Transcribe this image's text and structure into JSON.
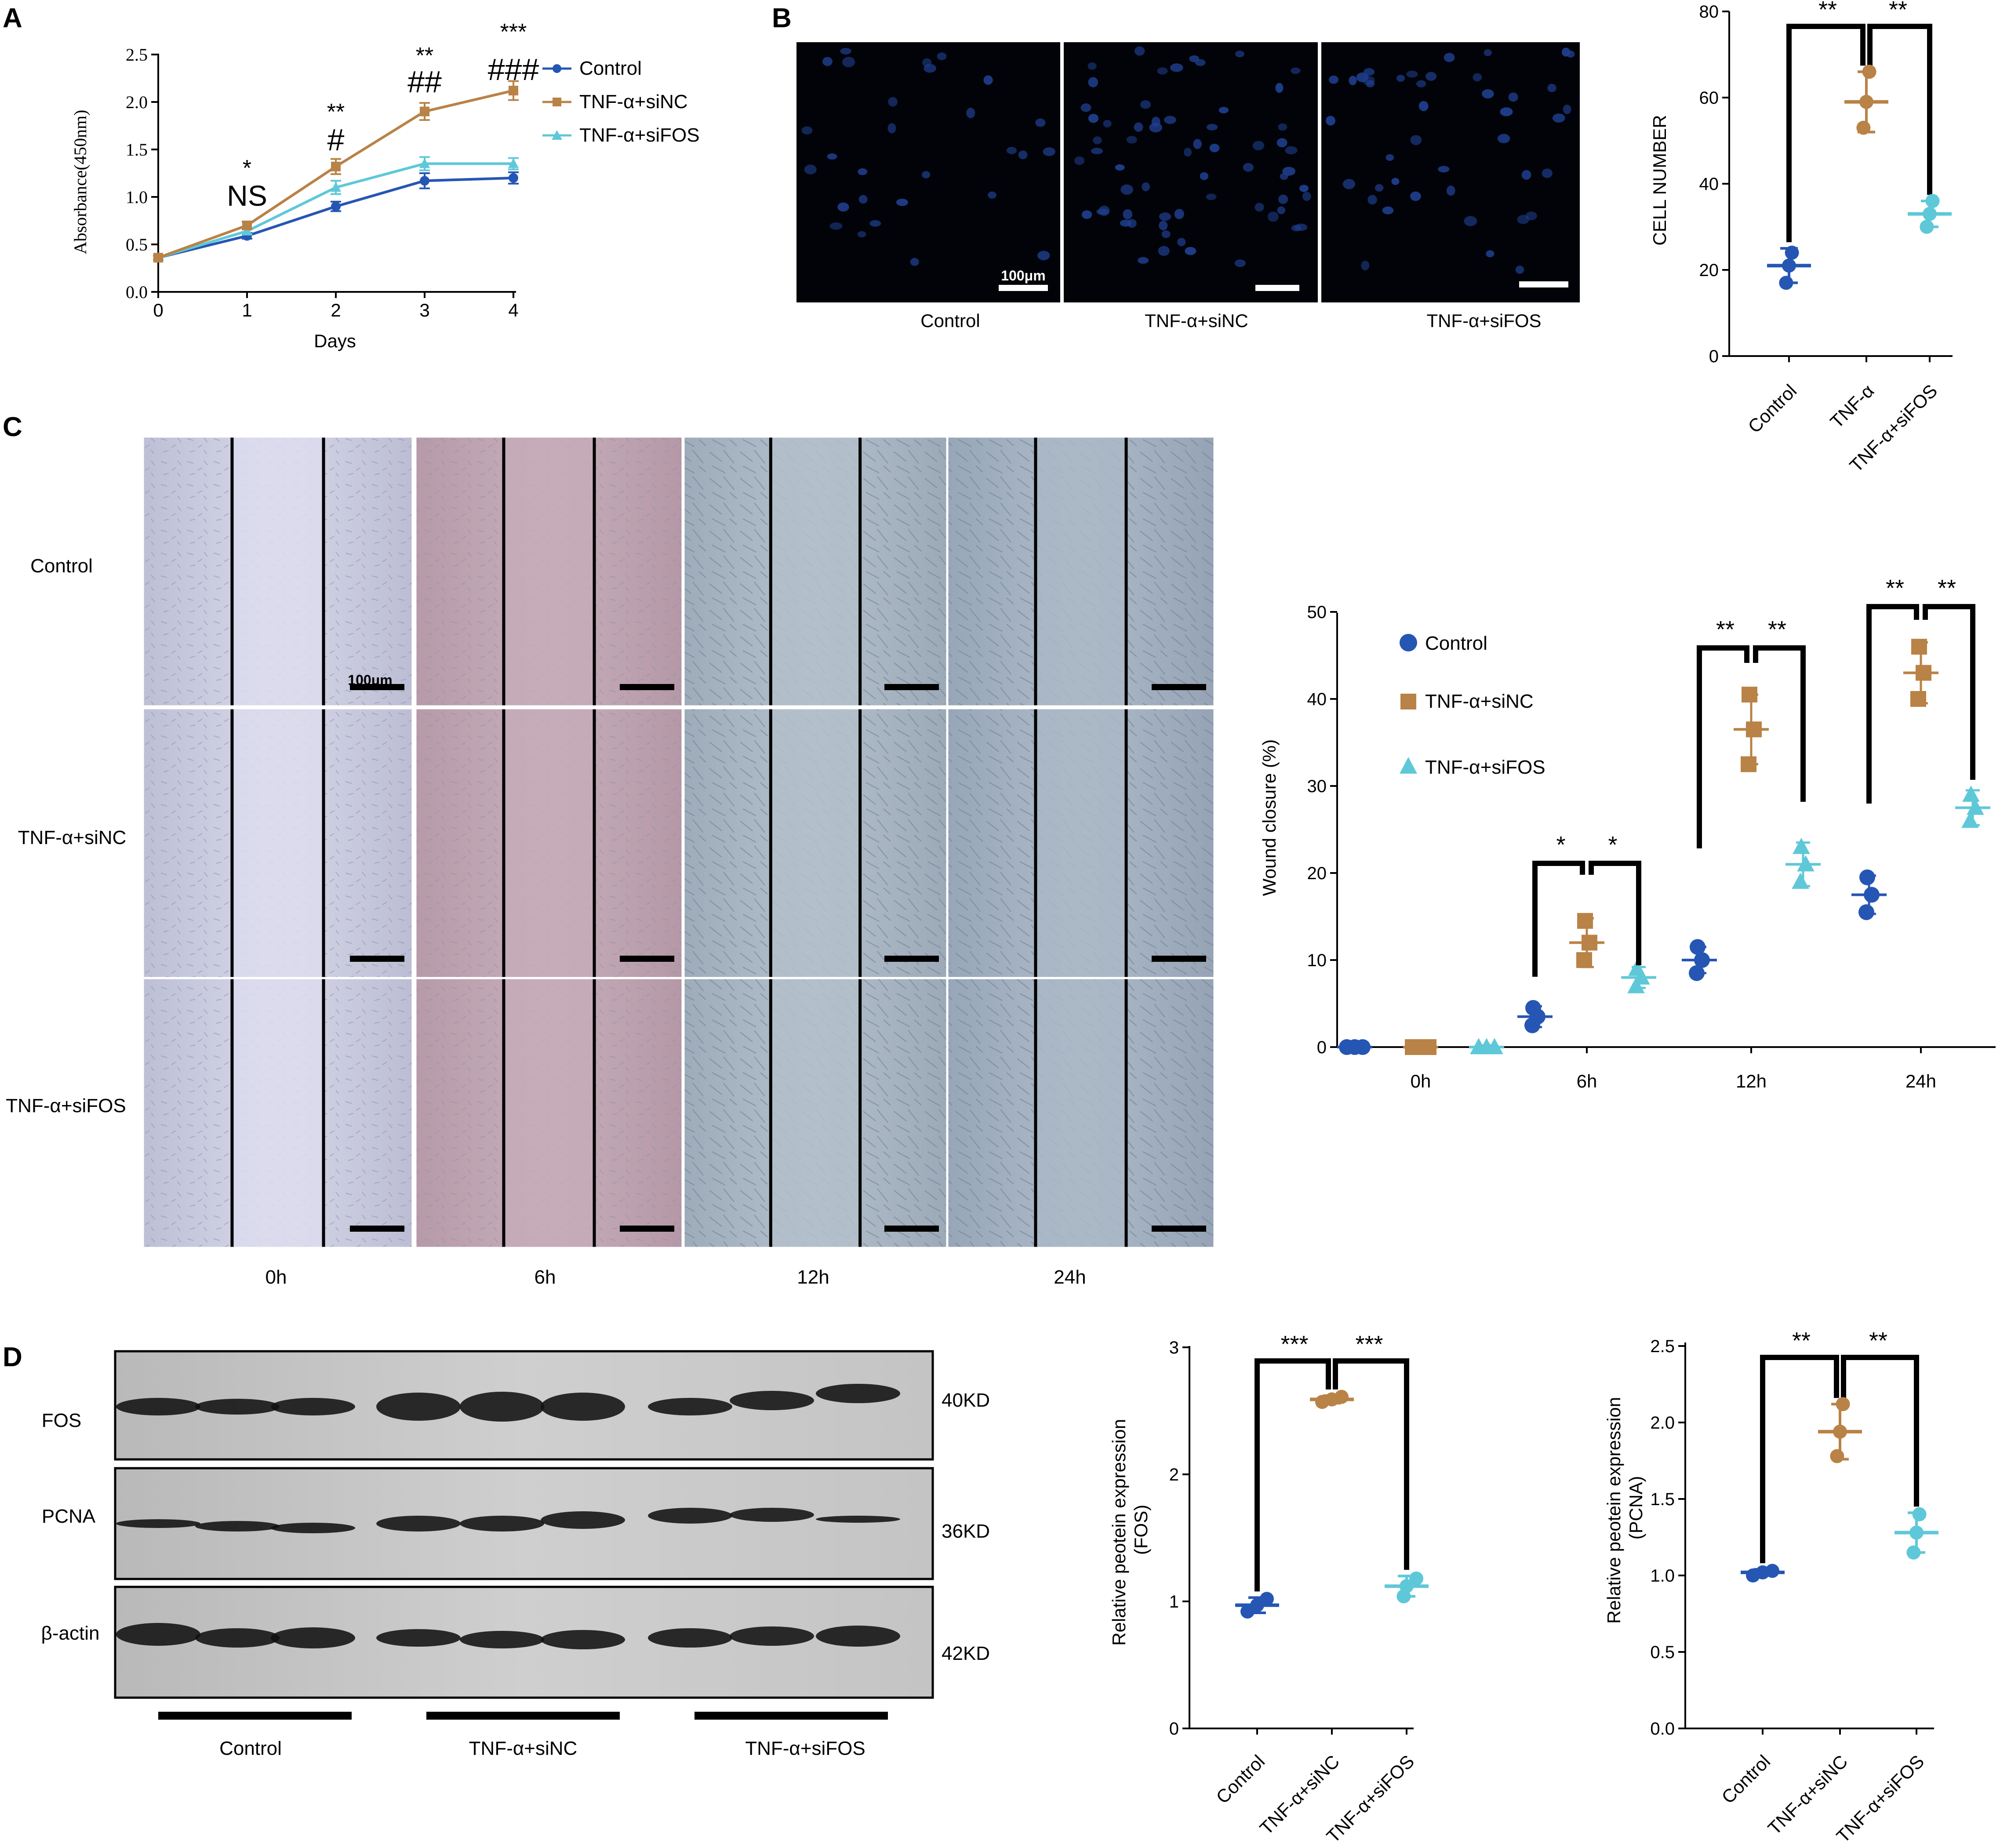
{
  "panels": {
    "a": "A",
    "b": "B",
    "c": "C",
    "d": "D"
  },
  "colors": {
    "control": "#2656b3",
    "sinc": "#b98246",
    "sifos": "#5ec8d8"
  },
  "chart_data": [
    {
      "id": "A",
      "type": "line",
      "xlabel": "Days",
      "ylabel": "Absorbance(450nm)",
      "x": [
        0,
        1,
        2,
        3,
        4
      ],
      "xticks": [
        "0",
        "1",
        "2",
        "3",
        "4"
      ],
      "yticks": [
        "0.0",
        "0.5",
        "1.0",
        "1.5",
        "2.0",
        "2.5"
      ],
      "ylim": [
        0,
        2.5
      ],
      "legend_position": "top-right",
      "series": [
        {
          "name": "Control",
          "values": [
            0.36,
            0.59,
            0.9,
            1.17,
            1.2
          ],
          "err": [
            0.02,
            0.03,
            0.05,
            0.08,
            0.06
          ]
        },
        {
          "name": "TNF-α+siNC",
          "values": [
            0.36,
            0.7,
            1.32,
            1.9,
            2.12
          ],
          "err": [
            0.02,
            0.04,
            0.08,
            0.09,
            0.1
          ]
        },
        {
          "name": "TNF-α+siFOS",
          "values": [
            0.36,
            0.64,
            1.1,
            1.35,
            1.35
          ],
          "err": [
            0.02,
            0.03,
            0.07,
            0.07,
            0.06
          ]
        }
      ],
      "annotations": [
        {
          "x": 1,
          "top": "*",
          "bottom": "NS"
        },
        {
          "x": 2,
          "top": "**",
          "bottom": "#"
        },
        {
          "x": 3,
          "top": "**",
          "bottom": "##"
        },
        {
          "x": 4,
          "top": "***",
          "bottom": "###"
        }
      ]
    },
    {
      "id": "B",
      "type": "scatter",
      "ylabel": "CELL NUMBER",
      "categories": [
        "Control",
        "TNF-α",
        "TNF-α+siFOS"
      ],
      "yticks": [
        "0",
        "20",
        "40",
        "60",
        "80"
      ],
      "ylim": [
        0,
        80
      ],
      "groups": [
        {
          "mean": 21,
          "sd": 4,
          "points": [
            17,
            21,
            24
          ]
        },
        {
          "mean": 59,
          "sd": 7,
          "points": [
            53,
            59,
            66
          ]
        },
        {
          "mean": 33,
          "sd": 3,
          "points": [
            30,
            33,
            36
          ]
        }
      ],
      "significance": [
        "**",
        "**"
      ]
    },
    {
      "id": "C",
      "type": "scatter",
      "ylabel": "Wound closure (%)",
      "categories": [
        "0h",
        "6h",
        "12h",
        "24h"
      ],
      "yticks": [
        "0",
        "10",
        "20",
        "30",
        "40",
        "50"
      ],
      "ylim": [
        0,
        50
      ],
      "legend_position": "top-left",
      "series": [
        {
          "name": "Control",
          "marker": "circle",
          "groups": [
            {
              "mean": 0,
              "sd": 0.2,
              "points": [
                0,
                0,
                0
              ]
            },
            {
              "mean": 3.5,
              "sd": 1.2,
              "points": [
                2.5,
                3.5,
                4.5
              ]
            },
            {
              "mean": 10,
              "sd": 1.5,
              "points": [
                8.5,
                10,
                11.5
              ]
            },
            {
              "mean": 17.5,
              "sd": 2.2,
              "points": [
                15.5,
                17.5,
                19.5
              ]
            }
          ]
        },
        {
          "name": "TNF-α+siNC",
          "marker": "square",
          "groups": [
            {
              "mean": 0,
              "sd": 0.2,
              "points": [
                0,
                0,
                0
              ]
            },
            {
              "mean": 12,
              "sd": 2.8,
              "points": [
                10,
                12,
                14.5
              ]
            },
            {
              "mean": 36.5,
              "sd": 4,
              "points": [
                32.5,
                36.5,
                40.5
              ]
            },
            {
              "mean": 43,
              "sd": 3.5,
              "points": [
                40,
                43,
                46
              ]
            }
          ]
        },
        {
          "name": "TNF-α+siFOS",
          "marker": "triangle",
          "groups": [
            {
              "mean": 0,
              "sd": 0.2,
              "points": [
                0,
                0,
                0
              ]
            },
            {
              "mean": 8,
              "sd": 1.2,
              "points": [
                7,
                8,
                9
              ]
            },
            {
              "mean": 21,
              "sd": 2.5,
              "points": [
                19,
                21,
                23
              ]
            },
            {
              "mean": 27.5,
              "sd": 2,
              "points": [
                26,
                27.5,
                29
              ]
            }
          ]
        }
      ],
      "significance": [
        {
          "category": "6h",
          "left": "*",
          "right": "*"
        },
        {
          "category": "12h",
          "left": "**",
          "right": "**"
        },
        {
          "category": "24h",
          "left": "**",
          "right": "**"
        }
      ]
    },
    {
      "id": "D-FOS",
      "type": "scatter",
      "ylabel": "Relative peotein expression\n(FOS)",
      "categories": [
        "Control",
        "TNF-α+siNC",
        "TNF-α+siFOS"
      ],
      "yticks": [
        "0",
        "1",
        "2",
        "3"
      ],
      "ylim": [
        0,
        3
      ],
      "groups": [
        {
          "mean": 0.97,
          "sd": 0.06,
          "points": [
            0.92,
            0.97,
            1.02
          ]
        },
        {
          "mean": 2.59,
          "sd": 0.03,
          "points": [
            2.57,
            2.59,
            2.61
          ]
        },
        {
          "mean": 1.12,
          "sd": 0.08,
          "points": [
            1.04,
            1.12,
            1.18
          ]
        }
      ],
      "significance": [
        "***",
        "***"
      ]
    },
    {
      "id": "D-PCNA",
      "type": "scatter",
      "ylabel": "Relative peotein expression\n(PCNA)",
      "categories": [
        "Control",
        "TNF-α+siNC",
        "TNF-α+siFOS"
      ],
      "yticks": [
        "0.0",
        "0.5",
        "1.0",
        "1.5",
        "2.0",
        "2.5"
      ],
      "ylim": [
        0,
        2.5
      ],
      "groups": [
        {
          "mean": 1.02,
          "sd": 0.02,
          "points": [
            1.0,
            1.02,
            1.03
          ]
        },
        {
          "mean": 1.94,
          "sd": 0.18,
          "points": [
            1.78,
            1.94,
            2.12
          ]
        },
        {
          "mean": 1.28,
          "sd": 0.13,
          "points": [
            1.15,
            1.28,
            1.4
          ]
        }
      ],
      "significance": [
        "**",
        "**"
      ]
    }
  ],
  "panel_b_images": {
    "labels": [
      "Control",
      "TNF-α+siNC",
      "TNF-α+siFOS"
    ],
    "scale_bar": "100μm"
  },
  "panel_c_images": {
    "row_labels": [
      "Control",
      "TNF-α+siNC",
      "TNF-α+siFOS"
    ],
    "column_labels": [
      "0h",
      "6h",
      "12h",
      "24h"
    ],
    "scale_bar": "100μm"
  },
  "panel_d_blot": {
    "bands": [
      {
        "name": "FOS",
        "size": "40KD"
      },
      {
        "name": "PCNA",
        "size": "36KD"
      },
      {
        "name": "β-actin",
        "size": "42KD"
      }
    ],
    "groups": [
      "Control",
      "TNF-α+siNC",
      "TNF-α+siFOS"
    ]
  }
}
